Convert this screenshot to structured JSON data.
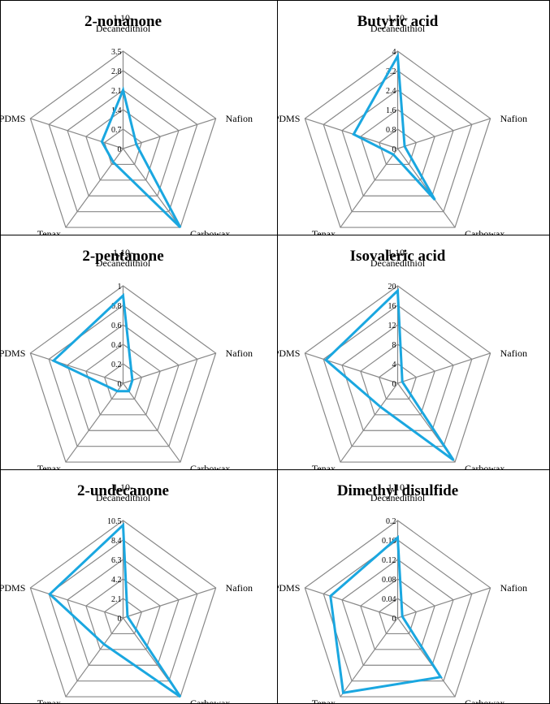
{
  "chart_data": [
    {
      "type": "radar",
      "title": "2-nonanone",
      "axes": [
        "1,10-\nDecanedithiol",
        "Nafion",
        "Carbowax",
        "Tenax",
        "PDMS"
      ],
      "ticks": [
        "0",
        "0.7",
        "1.4",
        "2.1",
        "2.8",
        "3.5"
      ],
      "rmax": 3.5,
      "series": [
        {
          "name": "2-nonanone",
          "color": "#1aa7e0",
          "values": [
            2.1,
            0.5,
            3.5,
            0.6,
            0.8
          ]
        }
      ]
    },
    {
      "type": "radar",
      "title": "Butyric acid",
      "axes": [
        "1,10-\nDecanedithiol",
        "Nafion",
        "Carbowax",
        "Tenax",
        "PDMS"
      ],
      "ticks": [
        "0",
        "0.8",
        "1.6",
        "2.4",
        "3.2",
        "4"
      ],
      "rmax": 4,
      "series": [
        {
          "name": "Butyric acid",
          "color": "#1aa7e0",
          "values": [
            3.8,
            0.3,
            2.6,
            0.3,
            1.9
          ]
        }
      ]
    },
    {
      "type": "radar",
      "title": "2-pentanone",
      "axes": [
        "1,10-\nDecanedithiol",
        "Nafion",
        "Carbowax",
        "Tenax",
        "PDMS"
      ],
      "ticks": [
        "0",
        "0.2",
        "0.4",
        "0.6",
        "0.8",
        "1"
      ],
      "rmax": 1,
      "series": [
        {
          "name": "2-pentanone",
          "color": "#1aa7e0",
          "values": [
            0.9,
            0.1,
            0.1,
            0.1,
            0.75
          ]
        }
      ]
    },
    {
      "type": "radar",
      "title": "Isovaleric acid",
      "axes": [
        "1,10-\nDecanedithiol",
        "Nafion",
        "Carbowax",
        "Tenax",
        "PDMS"
      ],
      "ticks": [
        "0",
        "4",
        "8",
        "12",
        "16",
        "20"
      ],
      "rmax": 20,
      "series": [
        {
          "name": "Isovaleric acid",
          "color": "#1aa7e0",
          "values": [
            19,
            1,
            19.5,
            6,
            15.5
          ]
        }
      ]
    },
    {
      "type": "radar",
      "title": "2-undecanone",
      "axes": [
        "1,10-\nDecanedithiol",
        "Nafion",
        "Carbowax",
        "Tenax",
        "PDMS"
      ],
      "ticks": [
        "0",
        "2.1",
        "4.2",
        "6.3",
        "8.4",
        "10.5"
      ],
      "rmax": 10.5,
      "series": [
        {
          "name": "2-undecanone",
          "color": "#1aa7e0",
          "values": [
            10,
            0.5,
            10.5,
            3.5,
            8.3
          ]
        }
      ]
    },
    {
      "type": "radar",
      "title": "Dimethyl disulfide",
      "axes": [
        "1,10-\nDecanedithiol",
        "Nafion",
        "Carbowax",
        "Tenax",
        "PDMS"
      ],
      "ticks": [
        "0",
        "0.04",
        "0.08",
        "0.12",
        "0.16",
        "0.2"
      ],
      "rmax": 0.2,
      "series": [
        {
          "name": "Dimethyl disulfide",
          "color": "#1aa7e0",
          "values": [
            0.165,
            0.01,
            0.15,
            0.19,
            0.145
          ]
        }
      ]
    }
  ]
}
